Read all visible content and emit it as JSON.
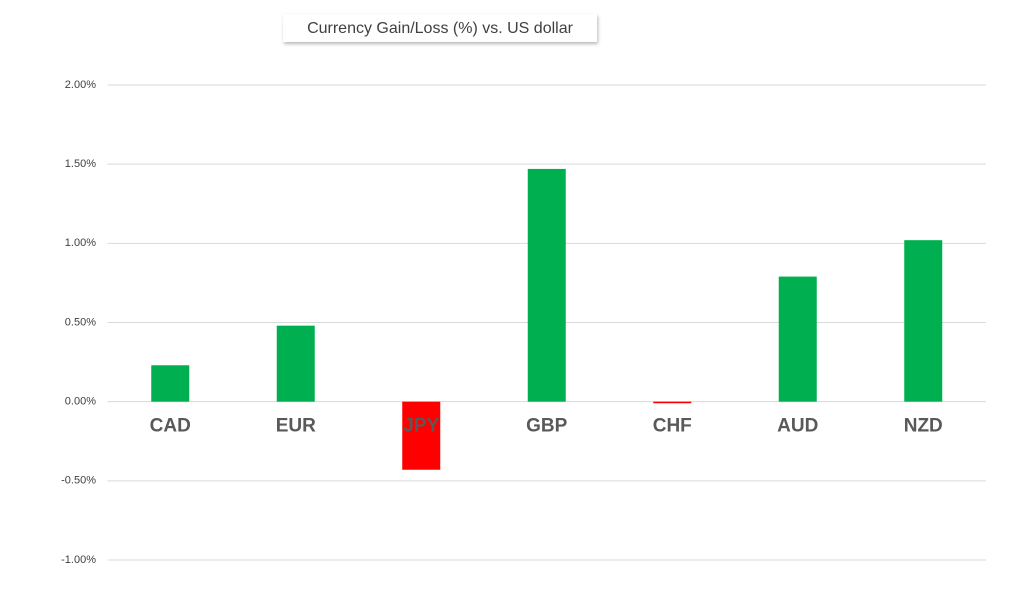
{
  "chart_data": {
    "type": "bar",
    "title": "Currency  Gain/Loss (%) vs. US dollar",
    "categories": [
      "CAD",
      "EUR",
      "JPY",
      "GBP",
      "CHF",
      "AUD",
      "NZD"
    ],
    "values": [
      0.23,
      0.48,
      -0.43,
      1.47,
      -0.01,
      0.79,
      1.02
    ],
    "colors": [
      "#00b050",
      "#00b050",
      "#ff0000",
      "#00b050",
      "#ff0000",
      "#00b050",
      "#00b050"
    ],
    "ylim": [
      -1,
      2
    ],
    "yticks": [
      {
        "value": -1,
        "label": "-1.00%"
      },
      {
        "value": -0.5,
        "label": "-0.50%"
      },
      {
        "value": 0,
        "label": "0.00%"
      },
      {
        "value": 0.5,
        "label": "0.50%"
      },
      {
        "value": 1,
        "label": "1.00%"
      },
      {
        "value": 1.5,
        "label": "1.50%"
      },
      {
        "value": 2,
        "label": "2.00%"
      }
    ],
    "grid": true
  }
}
